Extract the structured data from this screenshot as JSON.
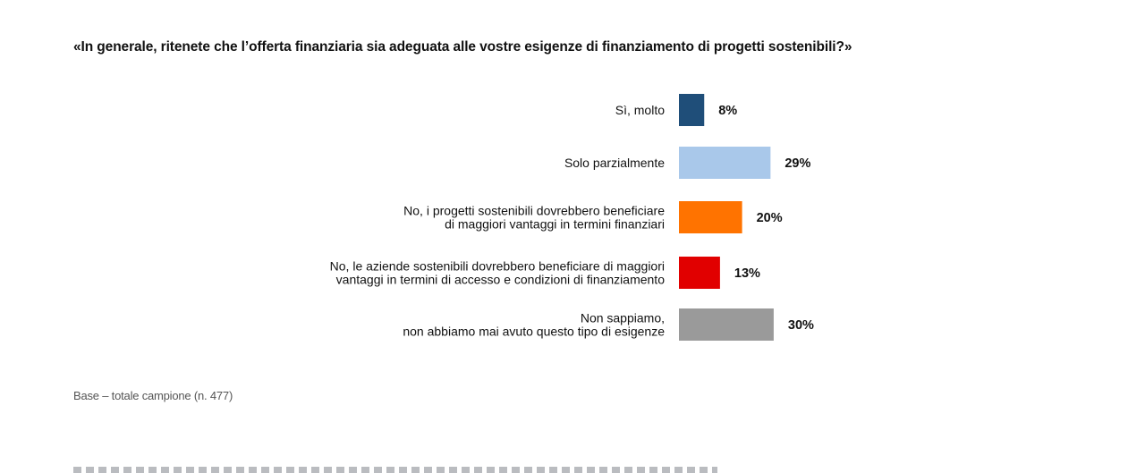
{
  "chart_data": {
    "type": "bar",
    "orientation": "horizontal",
    "title": "«In generale, ritenete che l’offerta finanziaria sia adeguata alle vostre esigenze di finanziamento di progetti sostenibili?»",
    "categories": [
      [
        "Sì, molto"
      ],
      [
        "Solo parzialmente"
      ],
      [
        "No, i progetti sostenibili dovrebbero beneficiare",
        "di maggiori vantaggi in termini finanziari"
      ],
      [
        "No, le aziende sostenibili dovrebbero beneficiare di maggiori",
        "vantaggi in termini di accesso e condizioni di finanziamento"
      ],
      [
        "Non sappiamo,",
        "non abbiamo mai avuto questo tipo di esigenze"
      ]
    ],
    "values": [
      8,
      29,
      20,
      13,
      30
    ],
    "value_labels": [
      "8%",
      "29%",
      "20%",
      "13%",
      "30%"
    ],
    "colors": [
      "#1f4e79",
      "#a9c8ea",
      "#ff7300",
      "#e10000",
      "#9a9a9a"
    ],
    "unit": "%",
    "grid": false,
    "legend": "none"
  },
  "footnote": "Base – totale campione (n. 477)"
}
